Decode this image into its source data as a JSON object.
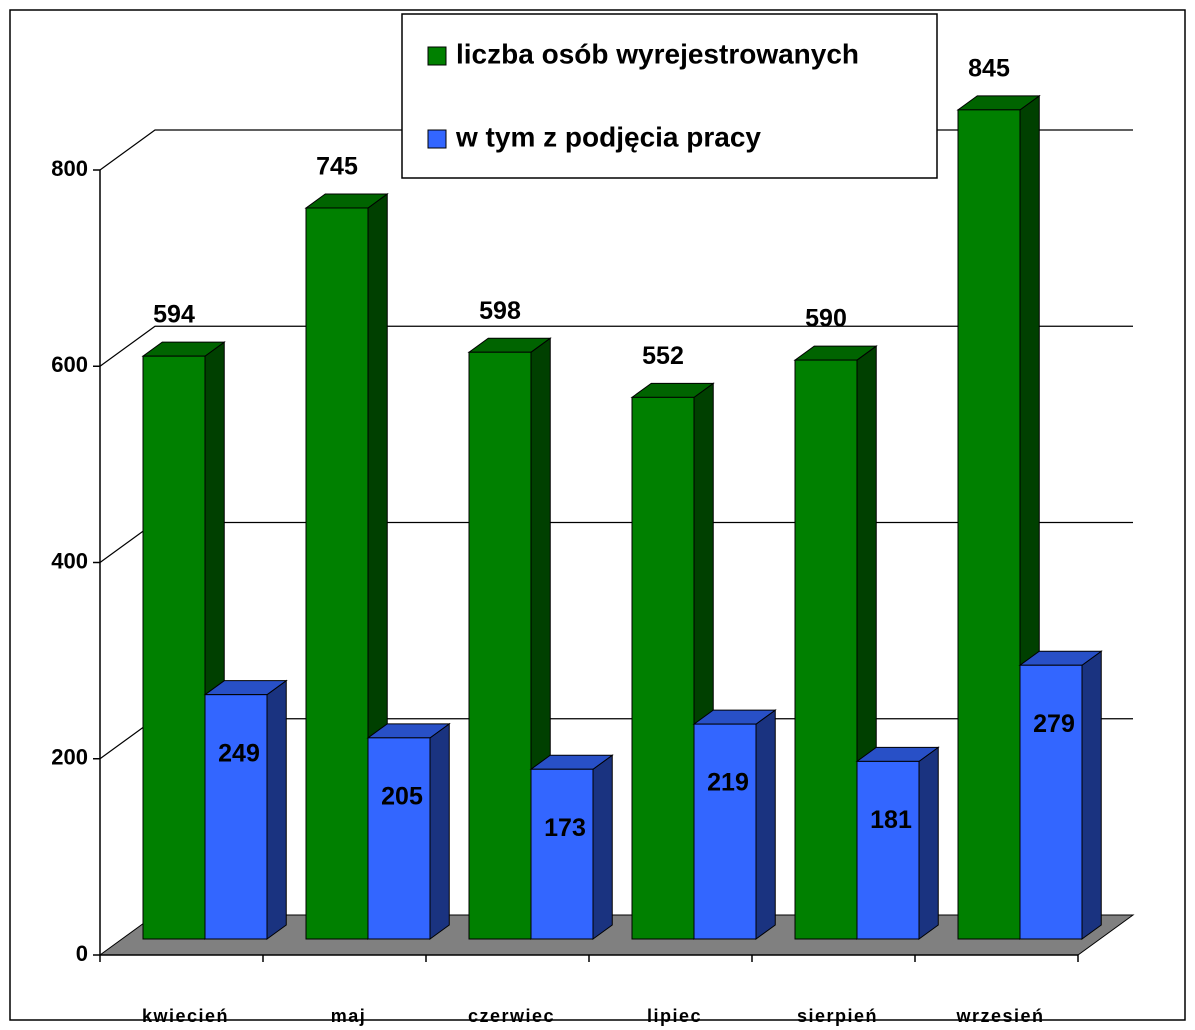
{
  "chart_data": {
    "type": "bar3d",
    "categories": [
      "kwiecień",
      "maj",
      "czerwiec",
      "lipiec",
      "sierpień",
      "wrzesień"
    ],
    "series": [
      {
        "name": "liczba osób wyrejestrowanych",
        "color": "#008000",
        "values": [
          594,
          745,
          598,
          552,
          590,
          845
        ]
      },
      {
        "name": "w tym z podjęcia pracy",
        "color": "#3366ff",
        "values": [
          249,
          205,
          173,
          219,
          181,
          279
        ]
      }
    ],
    "ylim": [
      0,
      800
    ],
    "yticks": [
      0,
      200,
      400,
      600,
      800
    ],
    "grid": true,
    "legend": "top"
  }
}
